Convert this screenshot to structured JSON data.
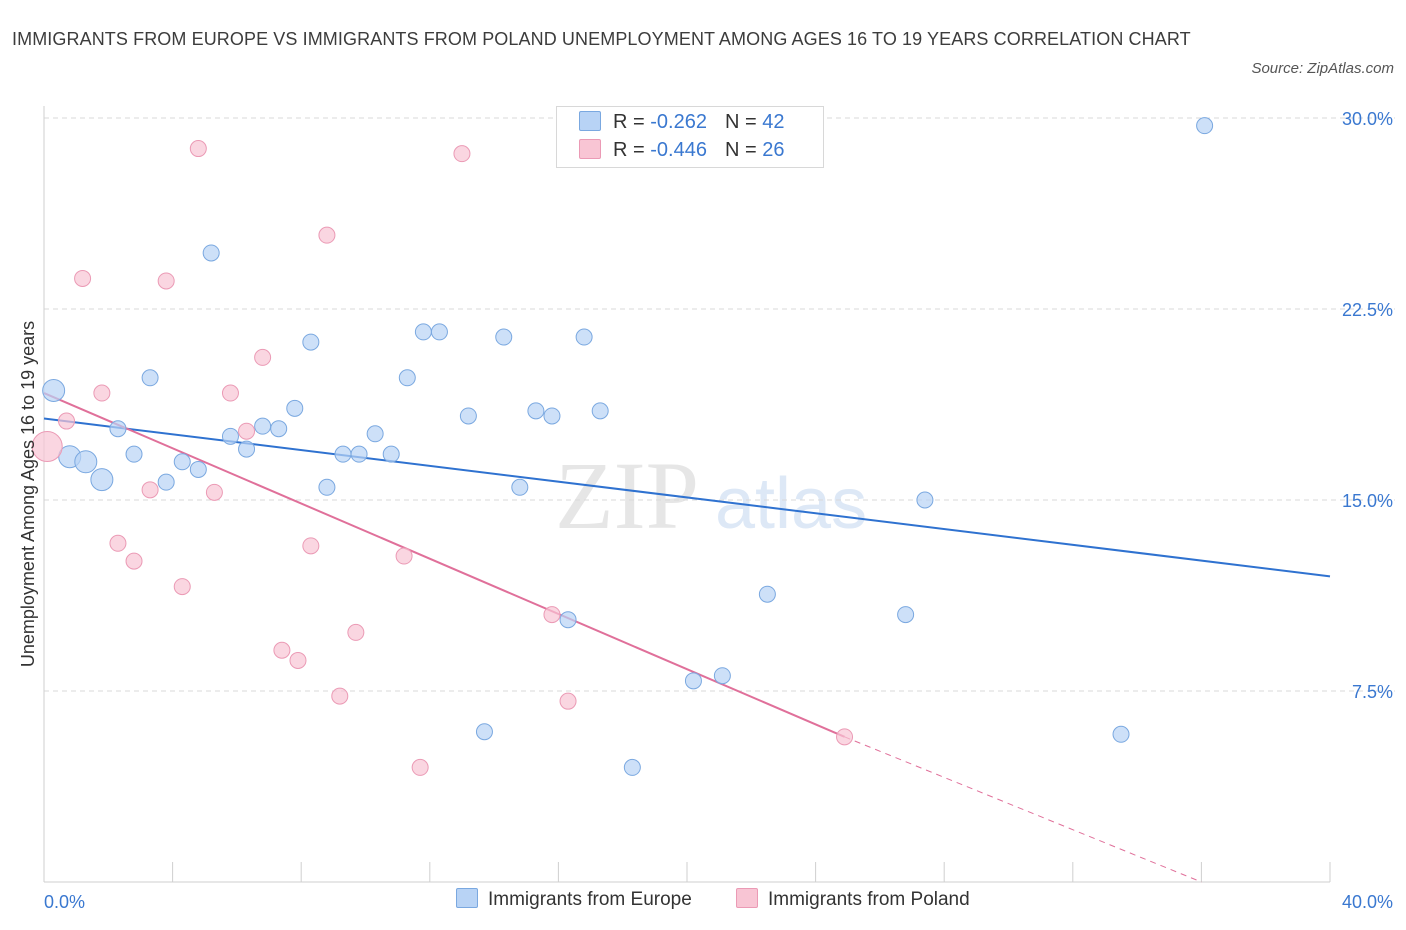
{
  "title": "IMMIGRANTS FROM EUROPE VS IMMIGRANTS FROM POLAND UNEMPLOYMENT AMONG AGES 16 TO 19 YEARS CORRELATION CHART",
  "source": "Source: ZipAtlas.com",
  "watermark": {
    "zip": "ZIP",
    "atlas": "atlas"
  },
  "legend": {
    "europe": {
      "r_label": "R = ",
      "r_value": "-0.262",
      "n_label": "N = ",
      "n_value": "42"
    },
    "poland": {
      "r_label": "R = ",
      "r_value": "-0.446",
      "n_label": "N = ",
      "n_value": "26"
    }
  },
  "bottom_legend": {
    "europe": "Immigrants from Europe",
    "poland": "Immigrants from Poland"
  },
  "colors": {
    "europe_fill": "#b8d3f5",
    "europe_stroke": "#7aa8e0",
    "europe_line": "#2f72d0",
    "poland_fill": "#f8c5d4",
    "poland_stroke": "#eb9ab5",
    "poland_line": "#e0709a",
    "axis_label": "#3a78d0",
    "grid": "#d9d9d9"
  },
  "chart_data": {
    "type": "scatter",
    "title": "IMMIGRANTS FROM EUROPE VS IMMIGRANTS FROM POLAND UNEMPLOYMENT AMONG AGES 16 TO 19 YEARS CORRELATION CHART",
    "xlabel": "",
    "ylabel": "Unemployment Among Ages 16 to 19 years",
    "xlim": [
      0,
      40
    ],
    "ylim": [
      0,
      30
    ],
    "x_tick_labels": [
      "0.0%",
      "40.0%"
    ],
    "y_ticks": [
      7.5,
      15.0,
      22.5,
      30.0
    ],
    "y_tick_labels": [
      "7.5%",
      "15.0%",
      "22.5%",
      "30.0%"
    ],
    "grid": "horizontal dashed",
    "legend_position": "top-center",
    "series": [
      {
        "name": "Immigrants from Europe",
        "points": [
          [
            0.3,
            19.3,
            2
          ],
          [
            0.8,
            16.7,
            2
          ],
          [
            1.3,
            16.5,
            2
          ],
          [
            1.8,
            15.8,
            2
          ],
          [
            2.3,
            17.8,
            1
          ],
          [
            2.8,
            16.8,
            1
          ],
          [
            3.3,
            19.8,
            1
          ],
          [
            3.8,
            15.7,
            1
          ],
          [
            4.3,
            16.5,
            1
          ],
          [
            4.8,
            16.2,
            1
          ],
          [
            5.2,
            24.7,
            1
          ],
          [
            5.8,
            17.5,
            1
          ],
          [
            6.3,
            17.0,
            1
          ],
          [
            6.8,
            17.9,
            1
          ],
          [
            7.3,
            17.8,
            1
          ],
          [
            7.8,
            18.6,
            1
          ],
          [
            8.3,
            21.2,
            1
          ],
          [
            8.8,
            15.5,
            1
          ],
          [
            9.3,
            16.8,
            1
          ],
          [
            9.8,
            16.8,
            1
          ],
          [
            10.3,
            17.6,
            1
          ],
          [
            10.8,
            16.8,
            1
          ],
          [
            11.3,
            19.8,
            1
          ],
          [
            11.8,
            21.6,
            1
          ],
          [
            12.3,
            21.6,
            1
          ],
          [
            13.2,
            18.3,
            1
          ],
          [
            14.3,
            21.4,
            1
          ],
          [
            14.8,
            15.5,
            1
          ],
          [
            15.3,
            18.5,
            1
          ],
          [
            15.8,
            18.3,
            1
          ],
          [
            16.3,
            10.3,
            1
          ],
          [
            16.8,
            21.4,
            1
          ],
          [
            17.3,
            18.5,
            1
          ],
          [
            18.3,
            4.5,
            1
          ],
          [
            13.7,
            5.9,
            1
          ],
          [
            20.2,
            7.9,
            1
          ],
          [
            21.1,
            8.1,
            1
          ],
          [
            22.5,
            11.3,
            1
          ],
          [
            26.8,
            10.5,
            1
          ],
          [
            27.4,
            15.0,
            1
          ],
          [
            33.5,
            5.8,
            1
          ],
          [
            36.1,
            29.7,
            1
          ]
        ]
      },
      {
        "name": "Immigrants from Poland",
        "points": [
          [
            0.1,
            17.1,
            3
          ],
          [
            0.7,
            18.1,
            1
          ],
          [
            1.2,
            23.7,
            1
          ],
          [
            1.8,
            19.2,
            1
          ],
          [
            2.3,
            13.3,
            1
          ],
          [
            2.8,
            12.6,
            1
          ],
          [
            3.3,
            15.4,
            1
          ],
          [
            3.8,
            23.6,
            1
          ],
          [
            4.3,
            11.6,
            1
          ],
          [
            4.8,
            28.8,
            1
          ],
          [
            5.3,
            15.3,
            1
          ],
          [
            5.8,
            19.2,
            1
          ],
          [
            6.3,
            17.7,
            1
          ],
          [
            6.8,
            20.6,
            1
          ],
          [
            7.4,
            9.1,
            1
          ],
          [
            7.9,
            8.7,
            1
          ],
          [
            8.3,
            13.2,
            1
          ],
          [
            8.8,
            25.4,
            1
          ],
          [
            9.2,
            7.3,
            1
          ],
          [
            9.7,
            9.8,
            1
          ],
          [
            11.7,
            4.5,
            1
          ],
          [
            11.2,
            12.8,
            1
          ],
          [
            13.0,
            28.6,
            1
          ],
          [
            15.8,
            10.5,
            1
          ],
          [
            16.3,
            7.1,
            1
          ],
          [
            24.9,
            5.7,
            1
          ]
        ]
      }
    ],
    "trend_lines": [
      {
        "series": "Immigrants from Europe",
        "x": [
          0,
          40
        ],
        "y": [
          18.2,
          12.0
        ]
      },
      {
        "series": "Immigrants from Poland",
        "x": [
          0,
          24.9
        ],
        "y": [
          19.2,
          5.7
        ],
        "dashed_extension": {
          "x": [
            24.9,
            36.0
          ],
          "y": [
            5.7,
            0.0
          ]
        }
      }
    ]
  }
}
